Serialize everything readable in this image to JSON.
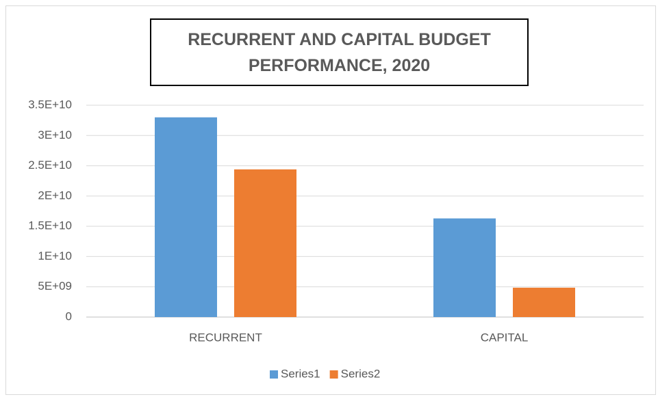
{
  "chart_data": {
    "type": "bar",
    "title": "RECURRENT AND CAPITAL BUDGET PERFORMANCE, 2020",
    "categories": [
      "RECURRENT",
      "CAPITAL"
    ],
    "series": [
      {
        "name": "Series1",
        "color": "#5b9bd5",
        "values": [
          33000000000,
          16300000000
        ]
      },
      {
        "name": "Series2",
        "color": "#ed7d31",
        "values": [
          24400000000,
          4850000000
        ]
      }
    ],
    "ylim": [
      0,
      35000000000
    ],
    "yticks": [
      0,
      {
        "value": 5000000000,
        "label": "5E+09"
      },
      {
        "value": 10000000000,
        "label": "1E+10"
      },
      {
        "value": 15000000000,
        "label": "1.5E+10"
      },
      {
        "value": 20000000000,
        "label": "2E+10"
      },
      {
        "value": 25000000000,
        "label": "2.5E+10"
      },
      {
        "value": 30000000000,
        "label": "3E+10"
      },
      {
        "value": 35000000000,
        "label": "3.5E+10"
      }
    ],
    "grid": true,
    "legend": "bottom"
  }
}
